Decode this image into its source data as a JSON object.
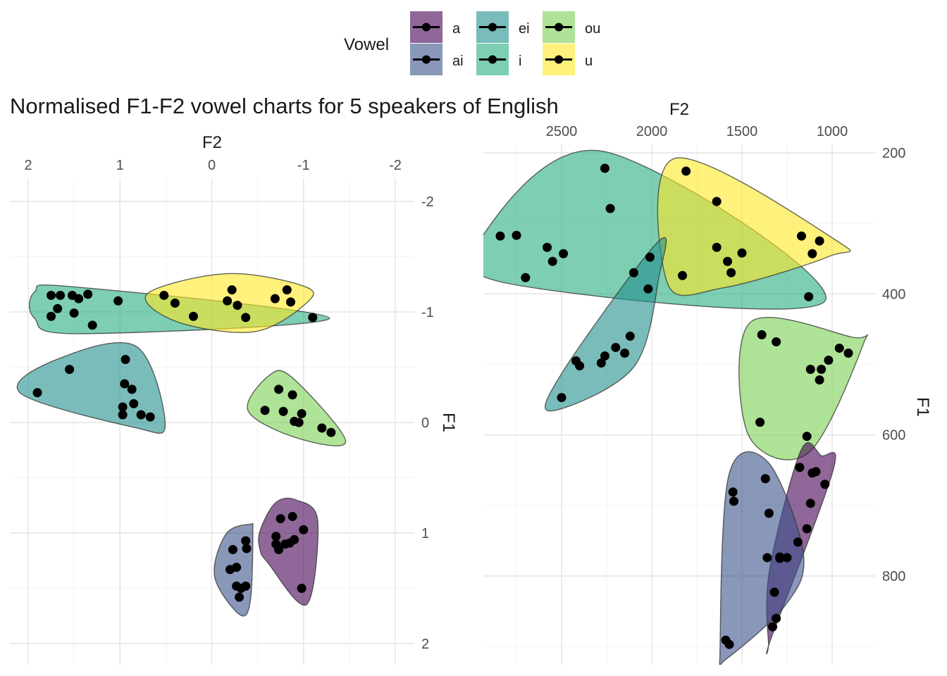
{
  "title": "Normalised F1-F2 vowel charts for 5 speakers of English",
  "legend": {
    "title": "Vowel",
    "items": [
      {
        "label": "a",
        "color": "#440154"
      },
      {
        "label": "ai",
        "color": "#3B528B"
      },
      {
        "label": "ei",
        "color": "#21908C"
      },
      {
        "label": "i",
        "color": "#27AD81"
      },
      {
        "label": "ou",
        "color": "#7AD151"
      },
      {
        "label": "u",
        "color": "#FDE725"
      }
    ]
  },
  "chart_data": [
    {
      "type": "scatter",
      "xlabel": "F2",
      "ylabel": "F1",
      "x_axis_position": "top",
      "y_axis_position": "right",
      "x_reversed": true,
      "y_reversed": true,
      "xlim": [
        2.2,
        -2.2
      ],
      "ylim": [
        -2.6,
        2.1
      ],
      "x_ticks": [
        2,
        1,
        0,
        -1,
        -2
      ],
      "x_tick_labels": [
        "2",
        "1",
        "0",
        "-1",
        "-2"
      ],
      "y_ticks": [
        -2,
        -1,
        0,
        1,
        2
      ],
      "y_tick_labels": [
        "-2",
        "-1",
        "0",
        "1",
        "2"
      ],
      "grid": true,
      "series": [
        {
          "name": "i",
          "points": [
            [
              1.75,
              -1.15
            ],
            [
              1.65,
              -1.15
            ],
            [
              1.52,
              -1.15
            ],
            [
              1.45,
              -1.12
            ],
            [
              1.35,
              -1.16
            ],
            [
              1.68,
              -1.03
            ],
            [
              1.75,
              -0.96
            ],
            [
              1.5,
              -0.99
            ],
            [
              1.3,
              -0.88
            ],
            [
              1.02,
              -1.1
            ],
            [
              -1.1,
              -0.95
            ]
          ]
        },
        {
          "name": "u",
          "points": [
            [
              0.52,
              -1.15
            ],
            [
              0.4,
              -1.08
            ],
            [
              0.2,
              -0.96
            ],
            [
              -0.22,
              -1.2
            ],
            [
              -0.17,
              -1.1
            ],
            [
              -0.28,
              -1.06
            ],
            [
              -0.37,
              -0.95
            ],
            [
              -0.69,
              -1.12
            ],
            [
              -0.82,
              -1.2
            ],
            [
              -0.86,
              -1.09
            ]
          ]
        },
        {
          "name": "ei",
          "points": [
            [
              1.9,
              -0.27
            ],
            [
              1.55,
              -0.48
            ],
            [
              0.94,
              -0.57
            ],
            [
              0.95,
              -0.35
            ],
            [
              0.87,
              -0.3
            ],
            [
              0.97,
              -0.14
            ],
            [
              0.85,
              -0.17
            ],
            [
              0.97,
              -0.07
            ],
            [
              0.77,
              -0.07
            ],
            [
              0.67,
              -0.05
            ]
          ]
        },
        {
          "name": "ou",
          "points": [
            [
              -0.73,
              -0.3
            ],
            [
              -0.88,
              -0.25
            ],
            [
              -0.58,
              -0.11
            ],
            [
              -0.78,
              -0.1
            ],
            [
              -0.98,
              -0.08
            ],
            [
              -0.9,
              -0.01
            ],
            [
              -0.95,
              0.0
            ],
            [
              -1.2,
              0.05
            ],
            [
              -1.3,
              0.09
            ]
          ]
        },
        {
          "name": "a",
          "points": [
            [
              -0.75,
              0.87
            ],
            [
              -0.88,
              0.85
            ],
            [
              -1.0,
              0.97
            ],
            [
              -0.7,
              1.03
            ],
            [
              -0.7,
              1.1
            ],
            [
              -0.8,
              1.1
            ],
            [
              -0.85,
              1.09
            ],
            [
              -0.9,
              1.06
            ],
            [
              -0.73,
              1.15
            ],
            [
              -0.98,
              1.5
            ]
          ]
        },
        {
          "name": "ai",
          "points": [
            [
              -0.37,
              1.07
            ],
            [
              -0.38,
              1.14
            ],
            [
              -0.23,
              1.15
            ],
            [
              -0.27,
              1.31
            ],
            [
              -0.2,
              1.33
            ],
            [
              -0.27,
              1.48
            ],
            [
              -0.37,
              1.48
            ],
            [
              -0.32,
              1.5
            ],
            [
              -0.3,
              1.58
            ]
          ]
        }
      ]
    },
    {
      "type": "scatter",
      "xlabel": "F2",
      "ylabel": "F1",
      "x_axis_position": "top",
      "y_axis_position": "right",
      "x_reversed": true,
      "y_reversed": true,
      "xlim": [
        2940,
        780
      ],
      "ylim": [
        199,
        920
      ],
      "x_ticks": [
        2500,
        2000,
        1500,
        1000
      ],
      "x_tick_labels": [
        "2500",
        "2000",
        "1500",
        "1000"
      ],
      "y_ticks": [
        200,
        400,
        600,
        800
      ],
      "y_tick_labels": [
        "200",
        "400",
        "600",
        "800"
      ],
      "grid": true,
      "series": [
        {
          "name": "i",
          "points": [
            [
              2260,
              222
            ],
            [
              2230,
              279
            ],
            [
              2840,
              318
            ],
            [
              2750,
              317
            ],
            [
              2580,
              334
            ],
            [
              2490,
              343
            ],
            [
              2550,
              354
            ],
            [
              2700,
              377
            ],
            [
              2100,
              370
            ],
            [
              1130,
              404
            ]
          ]
        },
        {
          "name": "u",
          "points": [
            [
              1810,
              226
            ],
            [
              1640,
              269
            ],
            [
              1640,
              334
            ],
            [
              1580,
              354
            ],
            [
              1500,
              342
            ],
            [
              1560,
              370
            ],
            [
              1830,
              374
            ],
            [
              1170,
              318
            ],
            [
              1070,
              325
            ],
            [
              1110,
              343
            ]
          ]
        },
        {
          "name": "ei",
          "points": [
            [
              2010,
              348
            ],
            [
              2020,
              393
            ],
            [
              2120,
              460
            ],
            [
              2200,
              476
            ],
            [
              2150,
              484
            ],
            [
              2260,
              488
            ],
            [
              2280,
              498
            ],
            [
              2420,
              495
            ],
            [
              2400,
              502
            ],
            [
              2500,
              547
            ]
          ]
        },
        {
          "name": "ou",
          "points": [
            [
              1390,
              458
            ],
            [
              1310,
              468
            ],
            [
              1120,
              507
            ],
            [
              1060,
              507
            ],
            [
              1020,
              494
            ],
            [
              960,
              477
            ],
            [
              910,
              484
            ],
            [
              1070,
              522
            ],
            [
              1400,
              582
            ],
            [
              1140,
              602
            ]
          ]
        },
        {
          "name": "a",
          "points": [
            [
              1180,
              646
            ],
            [
              1110,
              654
            ],
            [
              1090,
              652
            ],
            [
              1040,
              670
            ],
            [
              1120,
              697
            ],
            [
              1140,
              733
            ],
            [
              1190,
              752
            ],
            [
              1290,
              773
            ],
            [
              1330,
              872
            ],
            [
              1310,
              860
            ]
          ]
        },
        {
          "name": "ai",
          "points": [
            [
              1370,
              662
            ],
            [
              1550,
              681
            ],
            [
              1545,
              694
            ],
            [
              1350,
              711
            ],
            [
              1360,
              774
            ],
            [
              1250,
              774
            ],
            [
              1290,
              775
            ],
            [
              1320,
              823
            ],
            [
              1590,
              891
            ],
            [
              1570,
              897
            ]
          ]
        }
      ]
    }
  ]
}
